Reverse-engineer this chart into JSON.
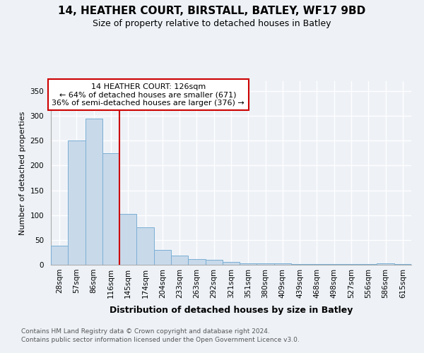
{
  "title1": "14, HEATHER COURT, BIRSTALL, BATLEY, WF17 9BD",
  "title2": "Size of property relative to detached houses in Batley",
  "xlabel": "Distribution of detached houses by size in Batley",
  "ylabel": "Number of detached properties",
  "footnote1": "Contains HM Land Registry data © Crown copyright and database right 2024.",
  "footnote2": "Contains public sector information licensed under the Open Government Licence v3.0.",
  "annotation_line1": "14 HEATHER COURT: 126sqm",
  "annotation_line2": "← 64% of detached houses are smaller (671)",
  "annotation_line3": "36% of semi-detached houses are larger (376) →",
  "bar_labels": [
    "28sqm",
    "57sqm",
    "86sqm",
    "116sqm",
    "145sqm",
    "174sqm",
    "204sqm",
    "233sqm",
    "263sqm",
    "292sqm",
    "321sqm",
    "351sqm",
    "380sqm",
    "409sqm",
    "439sqm",
    "468sqm",
    "498sqm",
    "527sqm",
    "556sqm",
    "586sqm",
    "615sqm"
  ],
  "bar_values": [
    38,
    250,
    295,
    225,
    103,
    76,
    30,
    19,
    11,
    10,
    5,
    3,
    3,
    3,
    2,
    2,
    1,
    1,
    1,
    3,
    2
  ],
  "bar_color": "#c8d9ea",
  "bar_edge_color": "#7bafd4",
  "vline_pos": 3.5,
  "vline_color": "#cc0000",
  "annotation_box_edgecolor": "#cc0000",
  "ylim": [
    0,
    370
  ],
  "yticks": [
    0,
    50,
    100,
    150,
    200,
    250,
    300,
    350
  ],
  "background_color": "#eef2f7",
  "plot_bg_color": "#eef2f7",
  "grid_color": "#ffffff",
  "title1_fontsize": 11,
  "title2_fontsize": 9,
  "ylabel_fontsize": 8,
  "tick_fontsize": 7.5,
  "xlabel_fontsize": 9,
  "ann_fontsize": 8,
  "footnote_fontsize": 6.5
}
